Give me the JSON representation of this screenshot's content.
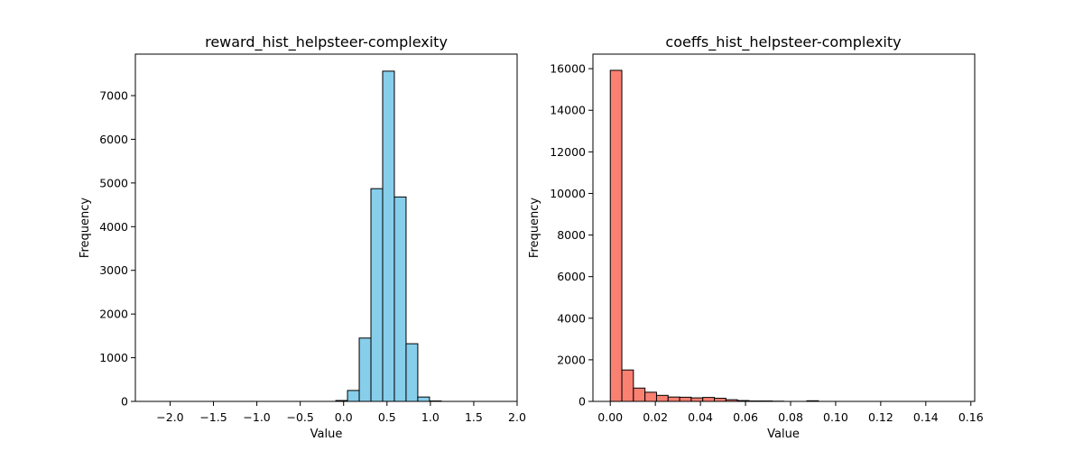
{
  "chart_data": [
    {
      "type": "bar",
      "title": "reward_hist_helpsteer-complexity",
      "xlabel": "Value",
      "ylabel": "Frequency",
      "xlim": [
        -2.4,
        2.0
      ],
      "ylim": [
        0,
        7950
      ],
      "xticks": [
        -2.0,
        -1.5,
        -1.0,
        -0.5,
        0.0,
        0.5,
        1.0,
        1.5,
        2.0
      ],
      "xtick_labels": [
        "−2.0",
        "−1.5",
        "−1.0",
        "−0.5",
        "0.0",
        "0.5",
        "1.0",
        "1.5",
        "2.0"
      ],
      "yticks": [
        0,
        1000,
        2000,
        3000,
        4000,
        5000,
        6000,
        7000
      ],
      "ytick_labels": [
        "0",
        "1000",
        "2000",
        "3000",
        "4000",
        "5000",
        "6000",
        "7000"
      ],
      "bins_start": -2.25,
      "bin_width": 0.135,
      "values": [
        0,
        0,
        0,
        0,
        0,
        0,
        0,
        0,
        0,
        0,
        0,
        0,
        0,
        0,
        0,
        0,
        20,
        250,
        1450,
        4870,
        7560,
        4680,
        1320,
        100,
        10,
        0,
        0,
        0,
        0,
        0
      ],
      "color": "#87ceeb",
      "edgecolor": "#000000",
      "grid": false
    },
    {
      "type": "bar",
      "title": "coeffs_hist_helpsteer-complexity",
      "xlabel": "Value",
      "ylabel": "Frequency",
      "xlim": [
        -0.0077,
        0.1617
      ],
      "ylim": [
        0,
        16700
      ],
      "xticks": [
        0.0,
        0.02,
        0.04,
        0.06,
        0.08,
        0.1,
        0.12,
        0.14,
        0.16
      ],
      "xtick_labels": [
        "0.00",
        "0.02",
        "0.04",
        "0.06",
        "0.08",
        "0.10",
        "0.12",
        "0.14",
        "0.16"
      ],
      "yticks": [
        0,
        2000,
        4000,
        6000,
        8000,
        10000,
        12000,
        14000,
        16000
      ],
      "ytick_labels": [
        "0",
        "2000",
        "4000",
        "6000",
        "8000",
        "10000",
        "12000",
        "14000",
        "16000"
      ],
      "bins_start": 0.0,
      "bin_width": 0.00513,
      "values": [
        15920,
        1510,
        640,
        440,
        290,
        210,
        200,
        170,
        190,
        150,
        80,
        40,
        20,
        20,
        10,
        0,
        0,
        30,
        0,
        0,
        0,
        0,
        0,
        0,
        0,
        0,
        0,
        0,
        0,
        0
      ],
      "color": "#fa8072",
      "edgecolor": "#000000",
      "grid": false
    }
  ]
}
